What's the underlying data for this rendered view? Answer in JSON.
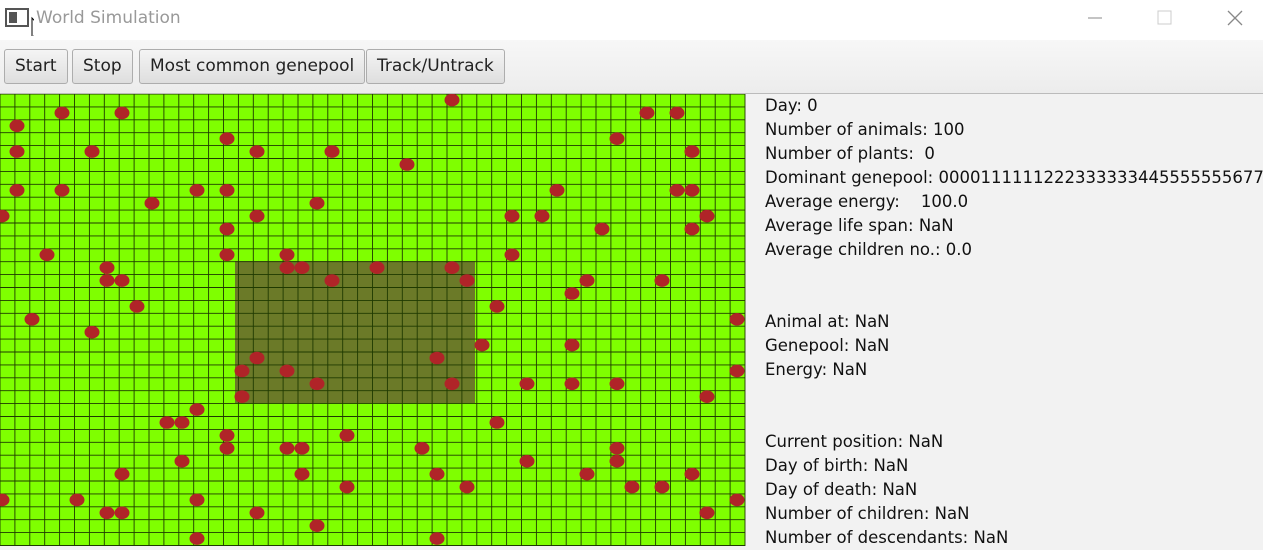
{
  "window": {
    "title": "World Simulation"
  },
  "toolbar": {
    "buttons": [
      "Start",
      "Stop",
      "Most common genepool",
      "Track/Untrack"
    ]
  },
  "stats": {
    "general": [
      "Day: 0",
      "Number of animals: 100",
      "Number of plants:  0",
      "Dominant genepool: 00001111112223333334455555556777",
      "Average energy:    100.0",
      "Average life span: NaN",
      "Average children no.: 0.0"
    ],
    "animal": [
      "Animal at: NaN",
      "Genepool: NaN",
      "Energy: NaN"
    ],
    "tracked": [
      "Current position: NaN",
      "Day of birth: NaN",
      "Day of death: NaN",
      "Number of children: NaN",
      "Number of descendants: NaN"
    ]
  }
}
